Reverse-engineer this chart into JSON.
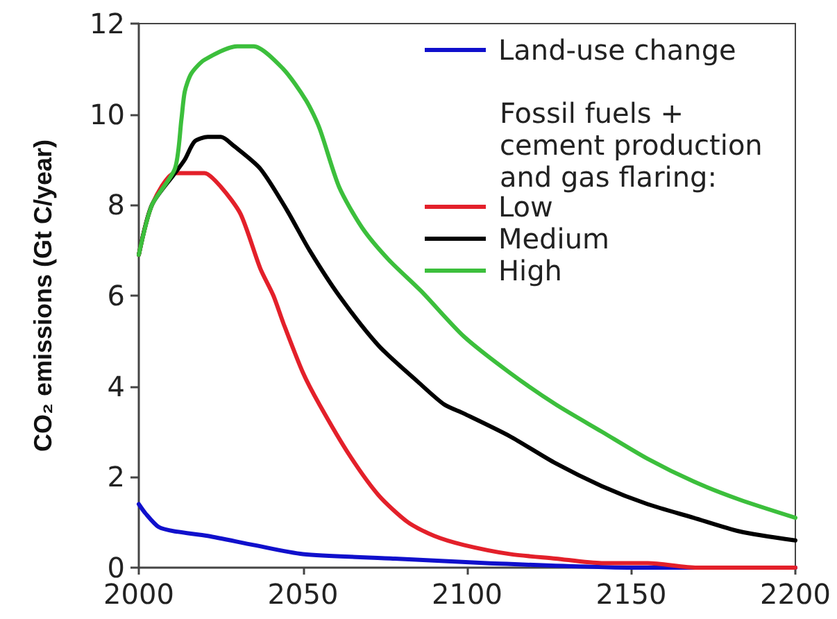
{
  "chart_data": {
    "type": "line",
    "ylabel": "CO₂ emissions (Gt C/year)",
    "xlim": [
      2000,
      2200
    ],
    "xticks": [
      2000,
      2050,
      2100,
      2150,
      2200
    ],
    "ylim": [
      0,
      12
    ],
    "yticks": [
      0,
      2,
      4,
      6,
      8,
      10,
      12
    ],
    "legend": "top right",
    "marker": "none",
    "line_style": "solid",
    "grid": false,
    "annotations": [
      "Fossil fuels + cement production and gas flaring:"
    ],
    "series": [
      {
        "name": "Land-use change",
        "color": "#1010cc",
        "x": [
          2000,
          2002,
          2006,
          2011,
          2021,
          2035,
          2050,
          2078,
          2106,
          2150,
          2200
        ],
        "values": [
          1.4,
          1.2,
          0.9,
          0.8,
          0.7,
          0.5,
          0.3,
          0.2,
          0.1,
          0.0,
          0.0
        ]
      },
      {
        "name": "Low",
        "color": "#e3202a",
        "x": [
          2000,
          2004,
          2011,
          2020,
          2025,
          2031,
          2037,
          2041,
          2044,
          2050,
          2055,
          2064,
          2073,
          2082,
          2090,
          2099,
          2113,
          2127,
          2141,
          2155,
          2170,
          2200
        ],
        "values": [
          6.9,
          8.0,
          8.7,
          8.7,
          8.4,
          7.8,
          6.6,
          6.0,
          5.4,
          4.3,
          3.6,
          2.5,
          1.6,
          1.0,
          0.7,
          0.5,
          0.3,
          0.2,
          0.1,
          0.1,
          0.0,
          0.0
        ]
      },
      {
        "name": "Medium",
        "color": "#000000",
        "x": [
          2000,
          2004,
          2011,
          2014,
          2017,
          2021,
          2025,
          2029,
          2037,
          2045,
          2052,
          2061,
          2073,
          2085,
          2093,
          2099,
          2113,
          2127,
          2141,
          2155,
          2169,
          2183,
          2200
        ],
        "values": [
          6.9,
          8.0,
          8.7,
          9.0,
          9.4,
          9.5,
          9.5,
          9.3,
          8.8,
          7.9,
          7.0,
          6.0,
          4.9,
          4.1,
          3.6,
          3.4,
          2.9,
          2.3,
          1.8,
          1.4,
          1.1,
          0.8,
          0.6
        ]
      },
      {
        "name": "High",
        "color": "#3cbf3c",
        "x": [
          2000,
          2004,
          2011,
          2013,
          2014,
          2016,
          2020,
          2030,
          2035,
          2044,
          2051,
          2055,
          2061,
          2068,
          2076,
          2086,
          2099,
          2113,
          2127,
          2141,
          2155,
          2169,
          2183,
          2200
        ],
        "values": [
          6.9,
          8.0,
          8.8,
          9.9,
          10.5,
          10.9,
          11.2,
          11.5,
          11.5,
          11.0,
          10.3,
          9.7,
          8.4,
          7.5,
          6.8,
          6.1,
          5.1,
          4.3,
          3.6,
          3.0,
          2.4,
          1.9,
          1.5,
          1.1
        ]
      }
    ]
  }
}
